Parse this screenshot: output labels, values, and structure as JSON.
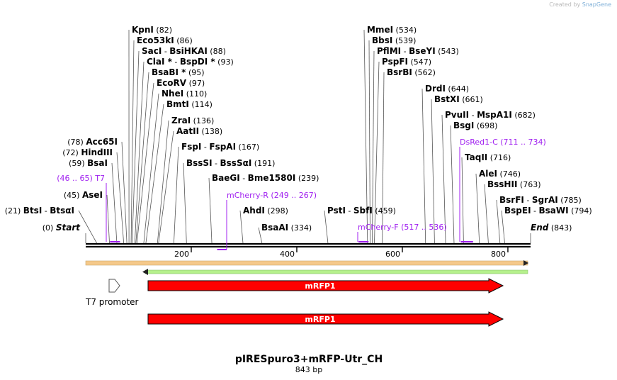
{
  "watermark": {
    "prefix": "Created by",
    "brand": "SnapGene"
  },
  "title": "pIRESpuro3+mRFP-Utr_CH",
  "subtitle": "843 bp",
  "sequence_length": 843,
  "start_label": "Start",
  "start_pos": "(0)",
  "end_label": "End",
  "end_pos": "(843)",
  "ruler_ticks": [
    "200",
    "400",
    "600",
    "800"
  ],
  "sites": [
    {
      "name": "KpnI",
      "pos": "(82)"
    },
    {
      "name": "Eco53kI",
      "pos": "(86)"
    },
    {
      "name": "SacI",
      "iso": "BsiHKAI",
      "pos": "(88)"
    },
    {
      "name": "ClaI *",
      "iso": "BspDI *",
      "pos": "(93)"
    },
    {
      "name": "BsaBI *",
      "pos": "(95)"
    },
    {
      "name": "EcoRV",
      "pos": "(97)"
    },
    {
      "name": "NheI",
      "pos": "(110)"
    },
    {
      "name": "BmtI",
      "pos": "(114)"
    },
    {
      "name": "ZraI",
      "pos": "(136)"
    },
    {
      "name": "AatII",
      "pos": "(138)"
    },
    {
      "name": "FspI",
      "iso": "FspAI",
      "pos": "(167)"
    },
    {
      "name": "BssSI",
      "iso": "BssSαI",
      "pos": "(191)"
    },
    {
      "name": "BaeGI",
      "iso": "Bme1580I",
      "pos": "(239)"
    },
    {
      "name": "AhdI",
      "pos": "(298)"
    },
    {
      "name": "BsaAI",
      "pos": "(334)"
    },
    {
      "name": "Acc65I",
      "pos": "(78)"
    },
    {
      "name": "HindIII",
      "pos": "(72)"
    },
    {
      "name": "BsaI",
      "pos": "(59)"
    },
    {
      "name": "AseI",
      "pos": "(45)"
    },
    {
      "name": "BtsI",
      "iso": "BtsαI",
      "pos": "(21)"
    },
    {
      "name": "MmeI",
      "pos": "(534)"
    },
    {
      "name": "BbsI",
      "pos": "(539)"
    },
    {
      "name": "PflMI",
      "iso": "BseYI",
      "pos": "(543)"
    },
    {
      "name": "PspFI",
      "pos": "(547)"
    },
    {
      "name": "BsrBI",
      "pos": "(562)"
    },
    {
      "name": "PstI",
      "iso": "SbfI",
      "pos": "(459)"
    },
    {
      "name": "DrdI",
      "pos": "(644)"
    },
    {
      "name": "BstXI",
      "pos": "(661)"
    },
    {
      "name": "PvuII",
      "iso": "MspA1I",
      "pos": "(682)"
    },
    {
      "name": "BsgI",
      "pos": "(698)"
    },
    {
      "name": "TaqII",
      "pos": "(716)"
    },
    {
      "name": "AleI",
      "pos": "(746)"
    },
    {
      "name": "BssHII",
      "pos": "(763)"
    },
    {
      "name": "BsrFI",
      "iso": "SgrAI",
      "pos": "(785)"
    },
    {
      "name": "BspEI",
      "iso": "BsaWI",
      "pos": "(794)"
    }
  ],
  "primers": [
    {
      "name": "T7",
      "range": "(46 .. 65)"
    },
    {
      "name": "mCherry-R",
      "range": "(249 .. 267)"
    },
    {
      "name": "mCherry-F",
      "range": "(517 .. 536)"
    },
    {
      "name": "DsRed1-C",
      "range": "(711 .. 734)"
    }
  ],
  "features": [
    {
      "name": "T7 promoter"
    },
    {
      "name": "mRFP1"
    },
    {
      "name": "mRFP1"
    }
  ],
  "colors": {
    "primer": "#a020f0",
    "feature_red": "#ff0000",
    "orange_bar": "#f5c98a",
    "green_bar": "#b5f08c",
    "backbone": "#000000"
  }
}
